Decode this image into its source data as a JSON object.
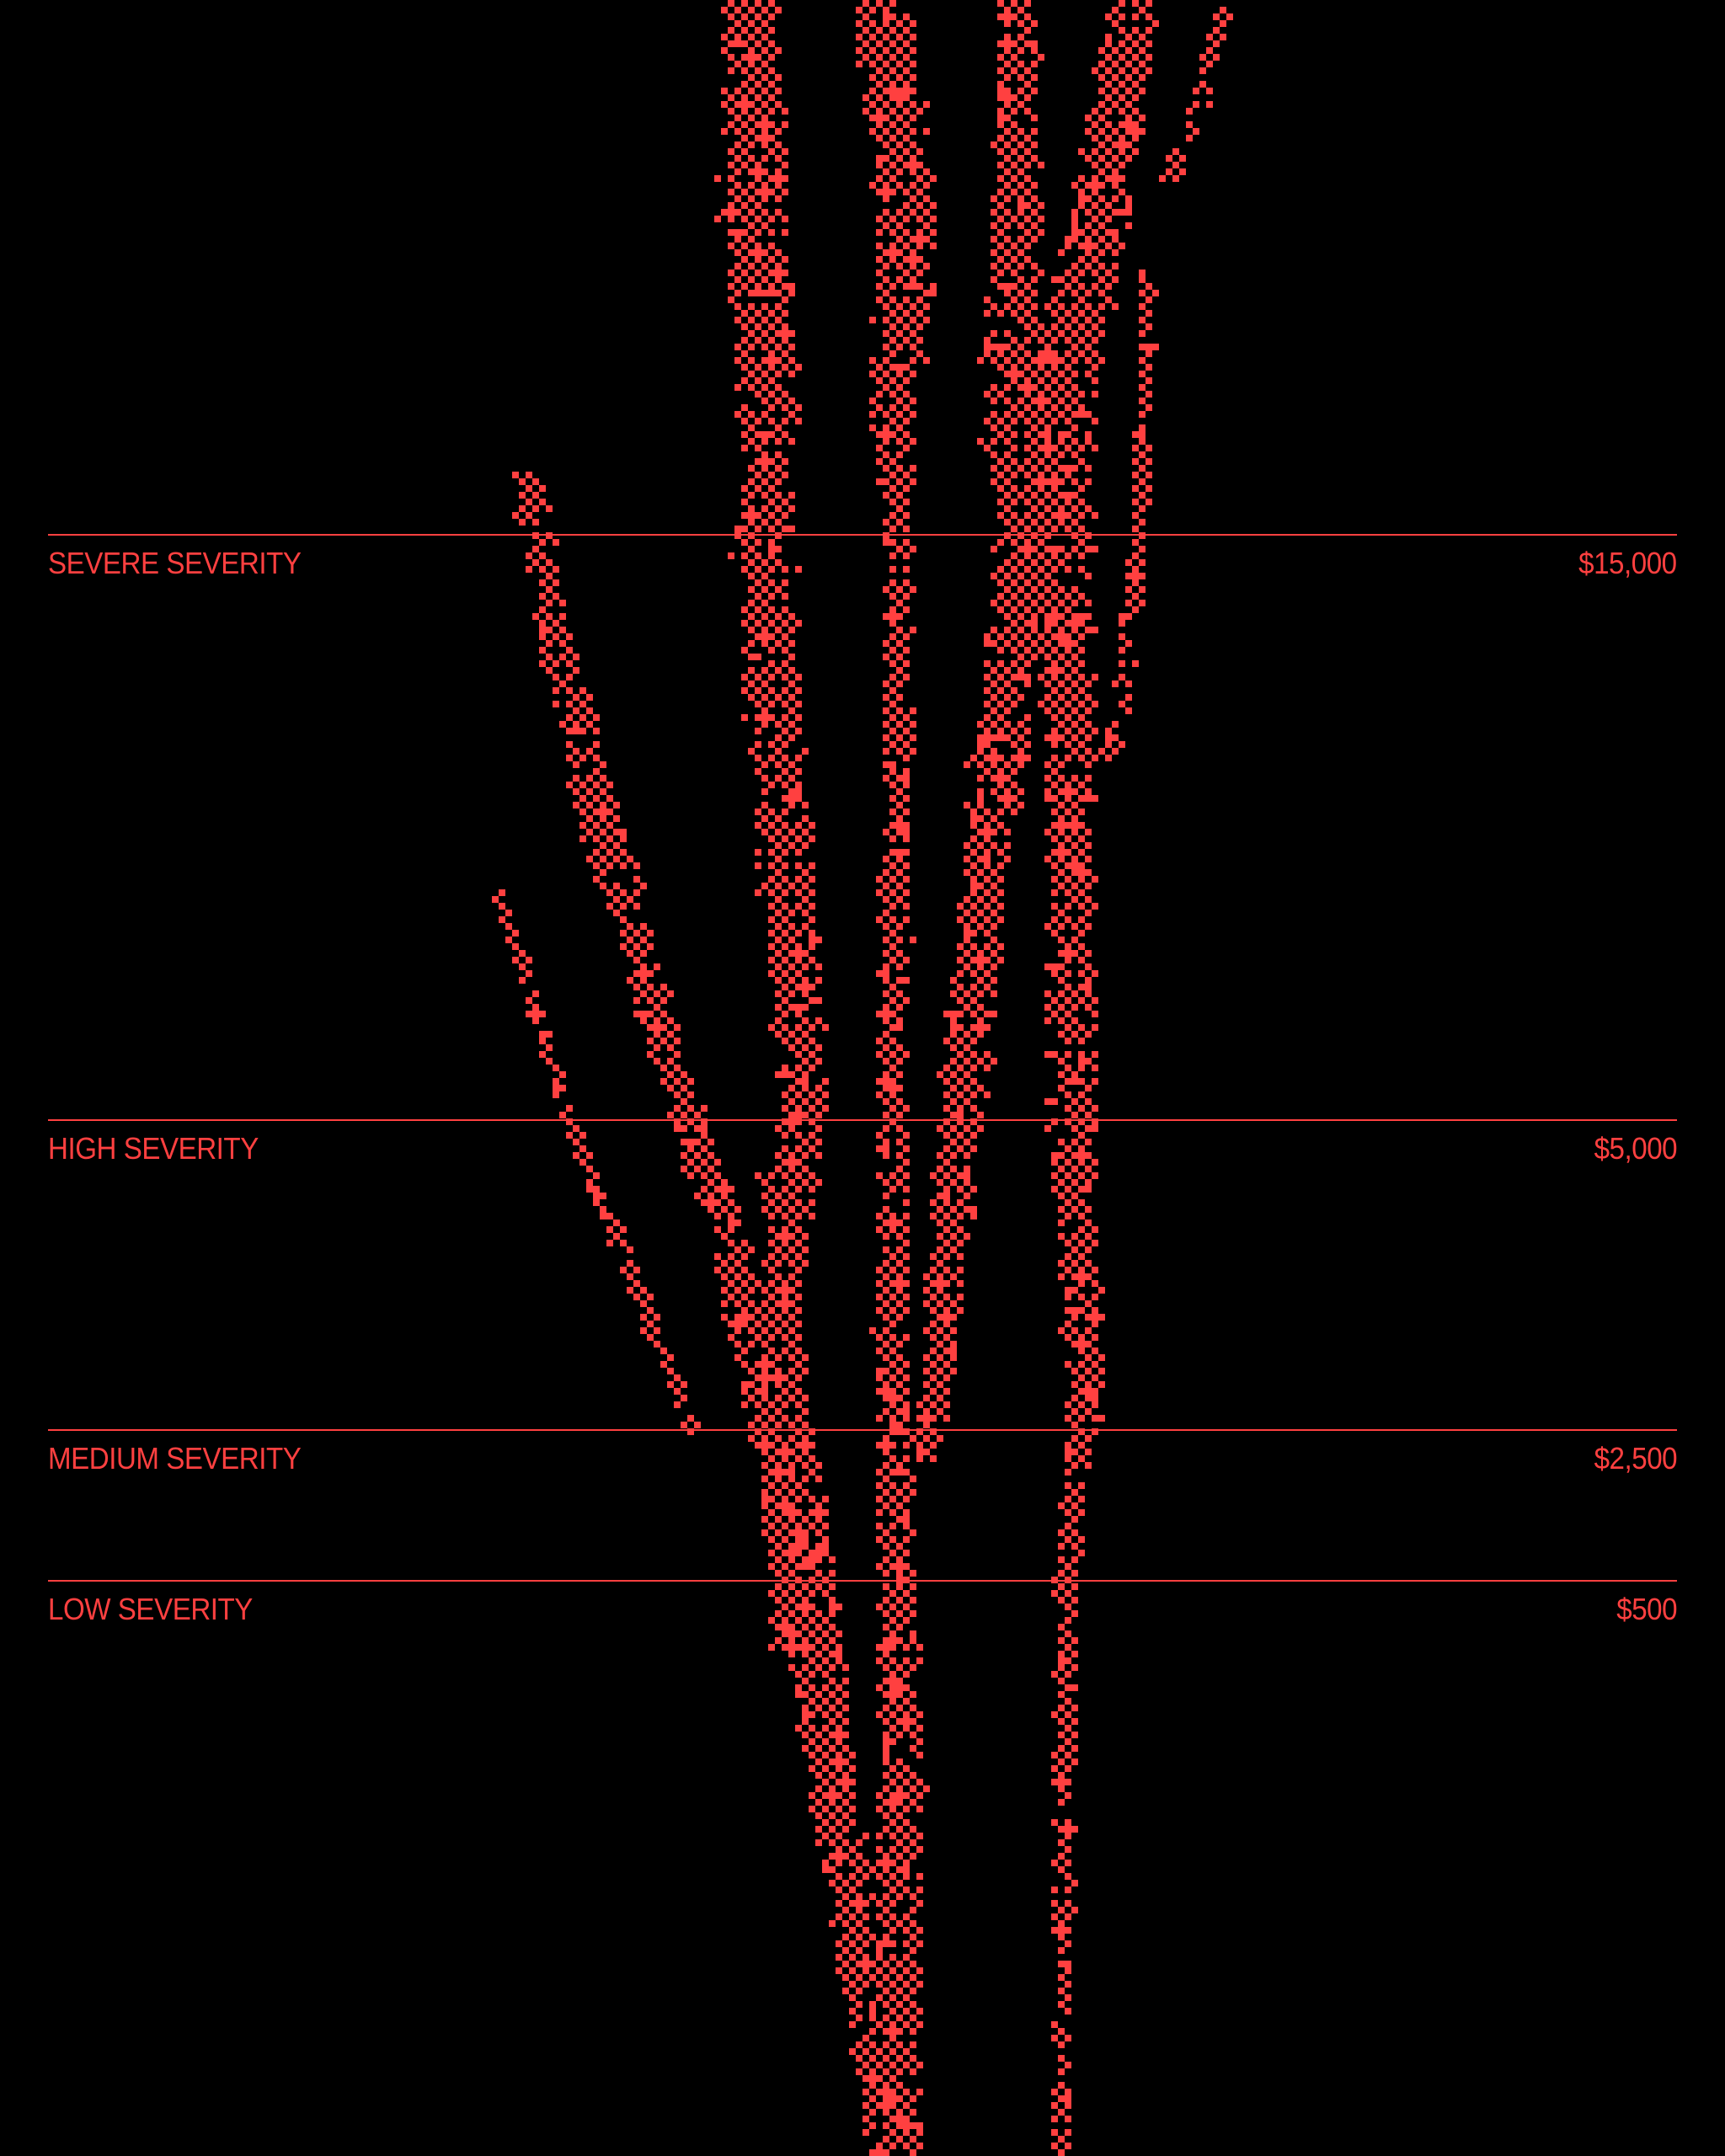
{
  "colors": {
    "background": "#000000",
    "accent": "#ff4040"
  },
  "tiers": [
    {
      "label": "SEVERE SEVERITY",
      "value": "$15,000"
    },
    {
      "label": "HIGH SEVERITY",
      "value": "$5,000"
    },
    {
      "label": "MEDIUM SEVERITY",
      "value": "$2,500"
    },
    {
      "label": "LOW SEVERITY",
      "value": "$500"
    }
  ]
}
